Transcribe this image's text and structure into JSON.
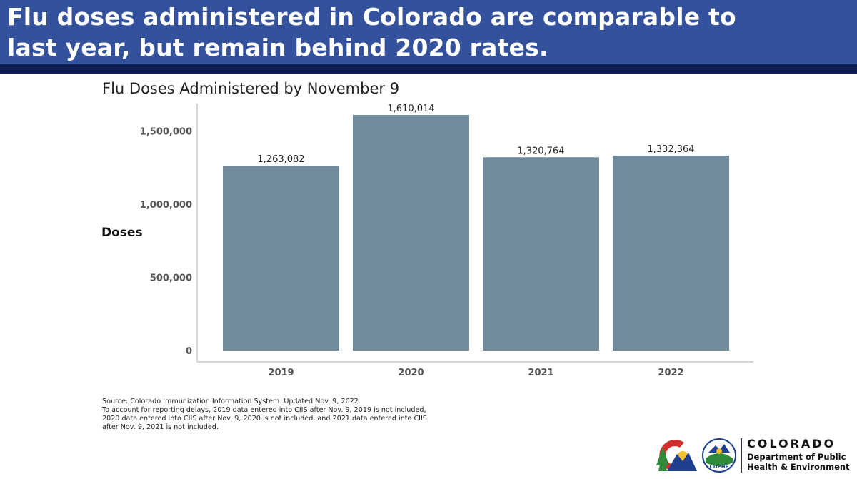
{
  "header": {
    "title_line1": "Flu doses administered in Colorado are comparable to",
    "title_line2": "last year, but remain behind 2020 rates."
  },
  "chart_data": {
    "type": "bar",
    "title": "Flu Doses Administered by November 9",
    "xlabel": "",
    "ylabel": "Doses",
    "categories": [
      "2019",
      "2020",
      "2021",
      "2022"
    ],
    "values": [
      1263082,
      1610014,
      1320764,
      1332364
    ],
    "value_labels": [
      "1,263,082",
      "1,610,014",
      "1,320,764",
      "1,332,364"
    ],
    "yticks": [
      0,
      500000,
      1000000,
      1500000
    ],
    "ytick_labels": [
      "0",
      "500,000",
      "1,000,000",
      "1,500,000"
    ],
    "ylim": [
      0,
      1610014
    ],
    "grid": false,
    "bar_color": "#718a9c"
  },
  "source": {
    "lines": [
      "Source: Colorado Immunization Information System. Updated Nov. 9, 2022.",
      "To account for reporting delays, 2019 data entered into CIIS after Nov. 9, 2019 is not included,",
      "2020 data entered into CIIS after Nov. 9, 2020 is not included, and 2021 data entered into CIIS",
      "after Nov. 9, 2021 is not included."
    ]
  },
  "logo": {
    "colorado": "COLORADO",
    "dept_line1": "Department of Public",
    "dept_line2": "Health & Environment",
    "seal_text": "CDPHE",
    "seal_top_text": "Be a Lighthouse"
  },
  "colors": {
    "header_blue": "#34519b",
    "header_stripe": "#0f1e52",
    "bar": "#718a9c",
    "logo_blue": "#1f3f8f",
    "logo_red": "#d22e2e",
    "logo_gold": "#f2c12e",
    "logo_green": "#2f8a3a"
  }
}
